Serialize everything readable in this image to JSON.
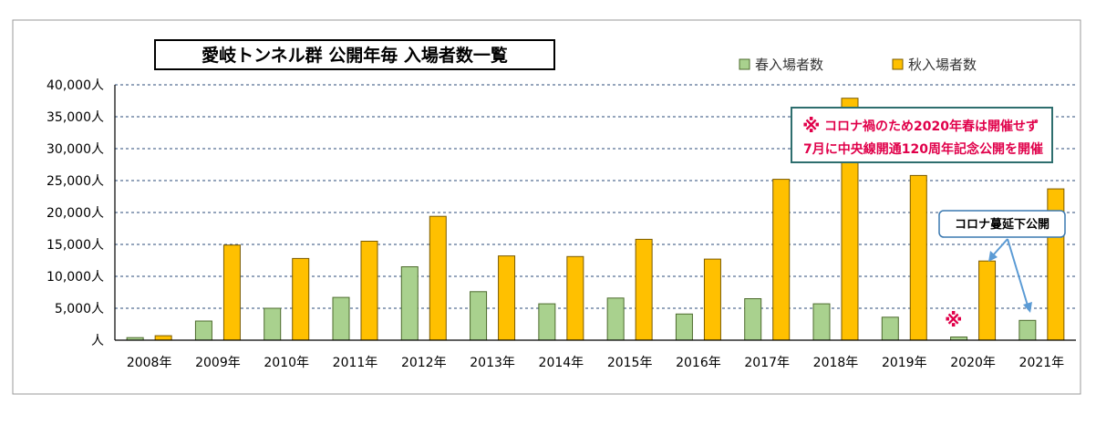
{
  "chart_data": {
    "type": "bar",
    "title": "愛岐トンネル群 公開年毎 入場者数一覧",
    "categories": [
      "2008年",
      "2009年",
      "2010年",
      "2011年",
      "2012年",
      "2013年",
      "2014年",
      "2015年",
      "2016年",
      "2017年",
      "2018年",
      "2019年",
      "2020年",
      "2021年"
    ],
    "series": [
      {
        "name": "春入場者数",
        "color": "#a9d18e",
        "values": [
          400,
          3000,
          5000,
          6700,
          11500,
          7600,
          5700,
          6600,
          4100,
          6500,
          5700,
          3600,
          500,
          3100
        ]
      },
      {
        "name": "秋入場者数",
        "color": "#ffc000",
        "values": [
          700,
          14900,
          12800,
          15500,
          19400,
          13200,
          13100,
          15800,
          12700,
          25200,
          37900,
          25800,
          12400,
          23700
        ]
      }
    ],
    "ylim": [
      0,
      40000
    ],
    "yticks": [
      "人",
      "5,000人",
      "10,000人",
      "15,000人",
      "20,000人",
      "25,000人",
      "30,000人",
      "35,000人",
      "40,000人"
    ],
    "grid": true,
    "legend_position": "top-right",
    "annotations": {
      "note_mark": "※",
      "note_line1": "コロナ禍のため2020年春は開催せず",
      "note_line2": "7月に中央線開通120周年記念公開を開催",
      "callout": "コロナ蔓延下公開",
      "mark_2020": "※"
    }
  }
}
